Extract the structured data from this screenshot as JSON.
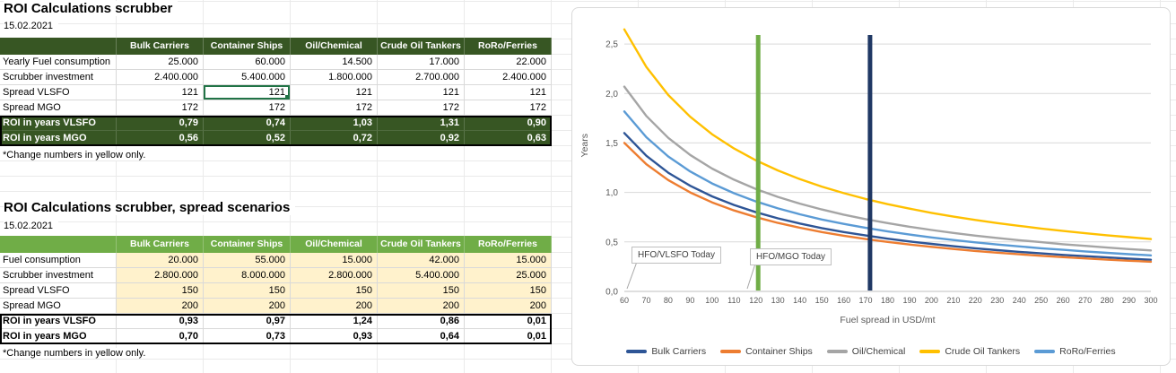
{
  "colors": {
    "dark-green": "#375623",
    "mid-green": "#70AD47",
    "input-yellow": "#FFF2CC",
    "selection-green": "#217346"
  },
  "sheet": {
    "table1": {
      "title": "ROI Calculations scrubber",
      "date": "15.02.2021",
      "columns": [
        "",
        "Bulk Carriers",
        "Container Ships",
        "Oil/Chemical",
        "Crude Oil Tankers",
        "RoRo/Ferries"
      ],
      "rows": [
        {
          "type": "data",
          "label": "Yearly Fuel consumption",
          "values": [
            "25.000",
            "60.000",
            "14.500",
            "17.000",
            "22.000"
          ]
        },
        {
          "type": "data",
          "label": "Scrubber investment",
          "values": [
            "2.400.000",
            "5.400.000",
            "1.800.000",
            "2.700.000",
            "2.400.000"
          ]
        },
        {
          "type": "data",
          "label": "Spread VLSFO",
          "values": [
            "121",
            "121",
            "121",
            "121",
            "121"
          ],
          "selected": 1
        },
        {
          "type": "data",
          "label": "Spread MGO",
          "values": [
            "172",
            "172",
            "172",
            "172",
            "172"
          ]
        },
        {
          "type": "roi",
          "label": "ROI in years VLSFO",
          "values": [
            "0,79",
            "0,74",
            "1,03",
            "1,31",
            "0,90"
          ]
        },
        {
          "type": "roi",
          "label": "ROI in years MGO",
          "values": [
            "0,56",
            "0,52",
            "0,72",
            "0,92",
            "0,63"
          ]
        }
      ],
      "footnote": "*Change numbers in yellow only."
    },
    "table2": {
      "title": "ROI Calculations scrubber, spread scenarios",
      "date": "15.02.2021",
      "columns": [
        "",
        "Bulk Carriers",
        "Container Ships",
        "Oil/Chemical",
        "Crude Oil Tankers",
        "RoRo/Ferries"
      ],
      "rows": [
        {
          "type": "input",
          "label": "Fuel consumption",
          "values": [
            "20.000",
            "55.000",
            "15.000",
            "42.000",
            "15.000"
          ]
        },
        {
          "type": "input",
          "label": "Scrubber investment",
          "values": [
            "2.800.000",
            "8.000.000",
            "2.800.000",
            "5.400.000",
            "25.000"
          ]
        },
        {
          "type": "input",
          "label": "Spread VLSFO",
          "values": [
            "150",
            "150",
            "150",
            "150",
            "150"
          ]
        },
        {
          "type": "input",
          "label": "Spread MGO",
          "values": [
            "200",
            "200",
            "200",
            "200",
            "200"
          ]
        },
        {
          "type": "roi2",
          "label": "ROI in years VLSFO",
          "values": [
            "0,93",
            "0,97",
            "1,24",
            "0,86",
            "0,01"
          ]
        },
        {
          "type": "roi2",
          "label": "ROI in years MGO",
          "values": [
            "0,70",
            "0,73",
            "0,93",
            "0,64",
            "0,01"
          ]
        }
      ],
      "footnote": "*Change numbers in yellow only."
    }
  },
  "chart_data": {
    "type": "line",
    "title": "",
    "xlabel": "Fuel spread in USD/mt",
    "ylabel": "Years",
    "xlim": [
      60,
      300
    ],
    "ylim": [
      0,
      2.7
    ],
    "grid": true,
    "legend_position": "bottom",
    "y_ticks": [
      0,
      0.5,
      1,
      1.5,
      2,
      2.5
    ],
    "y_tick_labels": [
      "0,0",
      "0,5",
      "1,0",
      "1,5",
      "2,0",
      "2,5"
    ],
    "x": [
      60,
      70,
      80,
      90,
      100,
      110,
      120,
      130,
      140,
      150,
      160,
      170,
      180,
      190,
      200,
      210,
      220,
      230,
      240,
      250,
      260,
      270,
      280,
      290,
      300
    ],
    "series": [
      {
        "name": "Bulk Carriers",
        "color": "#2E5596",
        "values": [
          1.6,
          1.371,
          1.2,
          1.067,
          0.96,
          0.873,
          0.8,
          0.738,
          0.686,
          0.64,
          0.6,
          0.565,
          0.533,
          0.505,
          0.48,
          0.457,
          0.436,
          0.417,
          0.4,
          0.384,
          0.369,
          0.356,
          0.343,
          0.331,
          0.32
        ]
      },
      {
        "name": "Container Ships",
        "color": "#ED7D31",
        "values": [
          1.5,
          1.286,
          1.125,
          1.0,
          0.9,
          0.818,
          0.75,
          0.692,
          0.643,
          0.6,
          0.563,
          0.529,
          0.5,
          0.474,
          0.45,
          0.429,
          0.409,
          0.391,
          0.375,
          0.36,
          0.346,
          0.333,
          0.321,
          0.31,
          0.3
        ]
      },
      {
        "name": "Oil/Chemical",
        "color": "#A5A5A5",
        "values": [
          2.069,
          1.773,
          1.552,
          1.379,
          1.241,
          1.129,
          1.034,
          0.955,
          0.887,
          0.828,
          0.776,
          0.73,
          0.69,
          0.653,
          0.621,
          0.591,
          0.564,
          0.54,
          0.517,
          0.497,
          0.477,
          0.46,
          0.443,
          0.428,
          0.414
        ]
      },
      {
        "name": "Crude Oil Tankers",
        "color": "#FFC000",
        "values": [
          2.647,
          2.269,
          1.985,
          1.765,
          1.588,
          1.444,
          1.324,
          1.222,
          1.134,
          1.059,
          0.993,
          0.934,
          0.882,
          0.836,
          0.794,
          0.756,
          0.722,
          0.69,
          0.662,
          0.635,
          0.611,
          0.588,
          0.567,
          0.548,
          0.529
        ]
      },
      {
        "name": "RoRo/Ferries",
        "color": "#5B9BD5",
        "values": [
          1.818,
          1.558,
          1.364,
          1.212,
          1.091,
          0.992,
          0.909,
          0.839,
          0.779,
          0.727,
          0.682,
          0.642,
          0.606,
          0.574,
          0.545,
          0.519,
          0.496,
          0.474,
          0.455,
          0.436,
          0.42,
          0.404,
          0.39,
          0.376,
          0.364
        ]
      }
    ],
    "vertical_markers": [
      {
        "name": "HFO/VLSFO Today",
        "x": 121,
        "color": "#70AD47"
      },
      {
        "name": "HFO/MGO Today",
        "x": 172,
        "color": "#203864"
      }
    ]
  }
}
